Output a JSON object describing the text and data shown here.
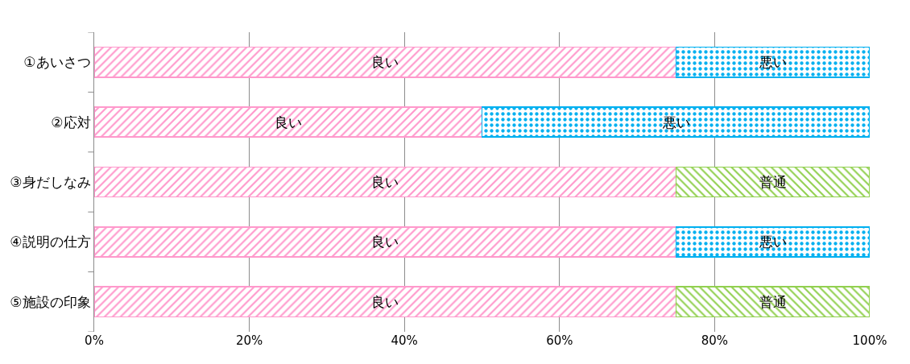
{
  "chart_data": {
    "type": "bar",
    "orientation": "horizontal",
    "stacked": true,
    "categories": [
      "①あいさつ",
      "②応対",
      "③身だしなみ",
      "④説明の仕方",
      "⑤施設の印象"
    ],
    "series": [
      {
        "name": "良い",
        "color": "#ff99cc",
        "values": [
          75,
          50,
          75,
          75,
          75
        ]
      },
      {
        "name": "普通",
        "color": "#92d050",
        "values": [
          null,
          null,
          25,
          null,
          25
        ]
      },
      {
        "name": "悪い",
        "color": "#00b0f0",
        "values": [
          25,
          50,
          null,
          25,
          null
        ]
      }
    ],
    "xlim": [
      0,
      100
    ],
    "xticks": [
      {
        "value": 0,
        "label": "0%"
      },
      {
        "value": 20,
        "label": "20%"
      },
      {
        "value": 40,
        "label": "40%"
      },
      {
        "value": 60,
        "label": "60%"
      },
      {
        "value": 80,
        "label": "80%"
      },
      {
        "value": 100,
        "label": "100%"
      }
    ],
    "grid": "x",
    "legend": false
  }
}
